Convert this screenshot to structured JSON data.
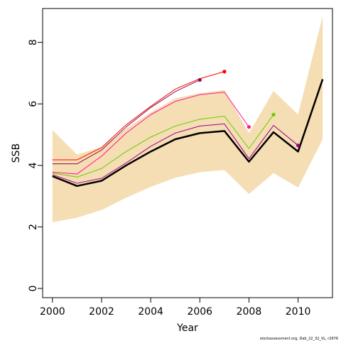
{
  "chart_data": {
    "type": "line",
    "xlabel": "Year",
    "ylabel": "SSB",
    "xlim": [
      1999.6,
      2011.4
    ],
    "ylim": [
      -0.3,
      9.1
    ],
    "x_ticks": [
      2000,
      2002,
      2004,
      2006,
      2008,
      2010
    ],
    "y_ticks": [
      0,
      2,
      4,
      6,
      8
    ],
    "grid": false,
    "legend": "none",
    "footer": "stockassessment.org, Dab_22_32_VL, r2676",
    "band": {
      "color": "#F5DEB3",
      "x": [
        2000,
        2001,
        2002,
        2003,
        2004,
        2005,
        2006,
        2007,
        2008,
        2009,
        2010,
        2011
      ],
      "lower": [
        2.15,
        2.3,
        2.55,
        2.95,
        3.3,
        3.6,
        3.78,
        3.85,
        3.07,
        3.75,
        3.28,
        4.85
      ],
      "upper": [
        5.15,
        4.35,
        4.6,
        5.2,
        5.72,
        6.18,
        6.35,
        6.45,
        5.05,
        6.42,
        5.65,
        8.85
      ]
    },
    "series": [
      {
        "color": "#FF0000",
        "width": 1,
        "x": [
          2000,
          2001,
          2002,
          2003,
          2004,
          2005,
          2006,
          2007
        ],
        "values": [
          4.18,
          4.18,
          4.58,
          5.32,
          5.92,
          6.48,
          6.82,
          7.05
        ],
        "end_point": true
      },
      {
        "color": "#8B0A50",
        "width": 1,
        "x": [
          2000,
          2001,
          2002,
          2003,
          2004,
          2005,
          2006
        ],
        "values": [
          4.05,
          4.05,
          4.5,
          5.25,
          5.88,
          6.4,
          6.78
        ],
        "end_point": true
      },
      {
        "color": "#FF1493",
        "width": 1,
        "x": [
          2000,
          2001,
          2002,
          2003,
          2004,
          2005,
          2006,
          2007,
          2008
        ],
        "values": [
          3.78,
          3.72,
          4.3,
          5.05,
          5.65,
          6.08,
          6.3,
          6.38,
          5.25
        ],
        "end_point": true
      },
      {
        "color": "#66CD00",
        "width": 1,
        "x": [
          2000,
          2001,
          2002,
          2003,
          2004,
          2005,
          2006,
          2007,
          2008,
          2009
        ],
        "values": [
          3.75,
          3.62,
          3.9,
          4.45,
          4.92,
          5.28,
          5.5,
          5.6,
          4.55,
          5.65
        ],
        "end_point": true
      },
      {
        "color": "#9B008B",
        "width": 1,
        "x": [
          2000,
          2001,
          2002,
          2003,
          2004,
          2005,
          2006,
          2007,
          2008,
          2009,
          2010
        ],
        "values": [
          3.7,
          3.42,
          3.58,
          4.08,
          4.62,
          5.05,
          5.28,
          5.35,
          4.22,
          5.3,
          4.65
        ],
        "end_point": true
      },
      {
        "color": "#000000",
        "width": 2.5,
        "x": [
          2000,
          2001,
          2002,
          2003,
          2004,
          2005,
          2006,
          2007,
          2008,
          2009,
          2010,
          2011
        ],
        "values": [
          3.65,
          3.33,
          3.5,
          4.0,
          4.45,
          4.85,
          5.05,
          5.12,
          4.12,
          5.08,
          4.45,
          6.8
        ],
        "end_point": false
      }
    ]
  }
}
